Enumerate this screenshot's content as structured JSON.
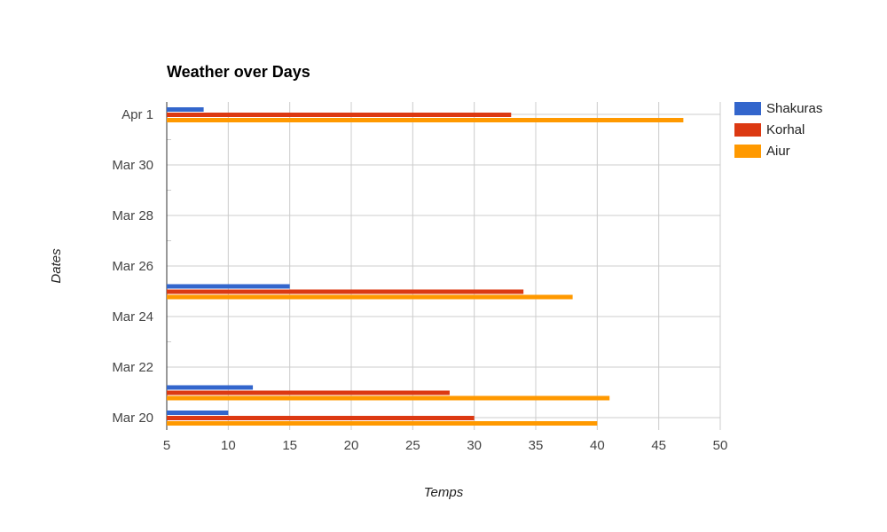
{
  "chart_data": {
    "type": "bar",
    "orientation": "horizontal",
    "title": "Weather over Days",
    "xlabel": "Temps",
    "ylabel": "Dates",
    "xlim": [
      5,
      50
    ],
    "x_ticks": [
      5,
      10,
      15,
      20,
      25,
      30,
      35,
      40,
      45,
      50
    ],
    "x_tick_labels": [
      "5",
      "10",
      "15",
      "20",
      "25",
      "30",
      "35",
      "40",
      "45",
      "50"
    ],
    "y_axis_type": "date",
    "ylim": [
      "2020-03-20",
      "2020-04-01"
    ],
    "y_ticks": [
      "2020-03-20",
      "2020-03-22",
      "2020-03-24",
      "2020-03-26",
      "2020-03-28",
      "2020-03-30",
      "2020-04-01"
    ],
    "y_tick_labels": [
      "Mar 20",
      "Mar 22",
      "Mar 24",
      "Mar 26",
      "Mar 28",
      "Mar 30",
      "Apr 1"
    ],
    "y_minor_ticks": [
      "2020-03-23",
      "2020-03-27",
      "2020-03-29",
      "2020-03-31"
    ],
    "categories": [
      "2020-03-20",
      "2020-03-21",
      "2020-03-25",
      "2020-04-01"
    ],
    "series": [
      {
        "name": "Shakuras",
        "color": "#3366cc",
        "values": [
          10,
          12,
          15,
          8
        ]
      },
      {
        "name": "Korhal",
        "color": "#dc3912",
        "values": [
          30,
          28,
          34,
          33
        ]
      },
      {
        "name": "Aiur",
        "color": "#ff9900",
        "values": [
          40,
          41,
          38,
          47
        ]
      }
    ],
    "grid": true,
    "legend_position": "right"
  }
}
